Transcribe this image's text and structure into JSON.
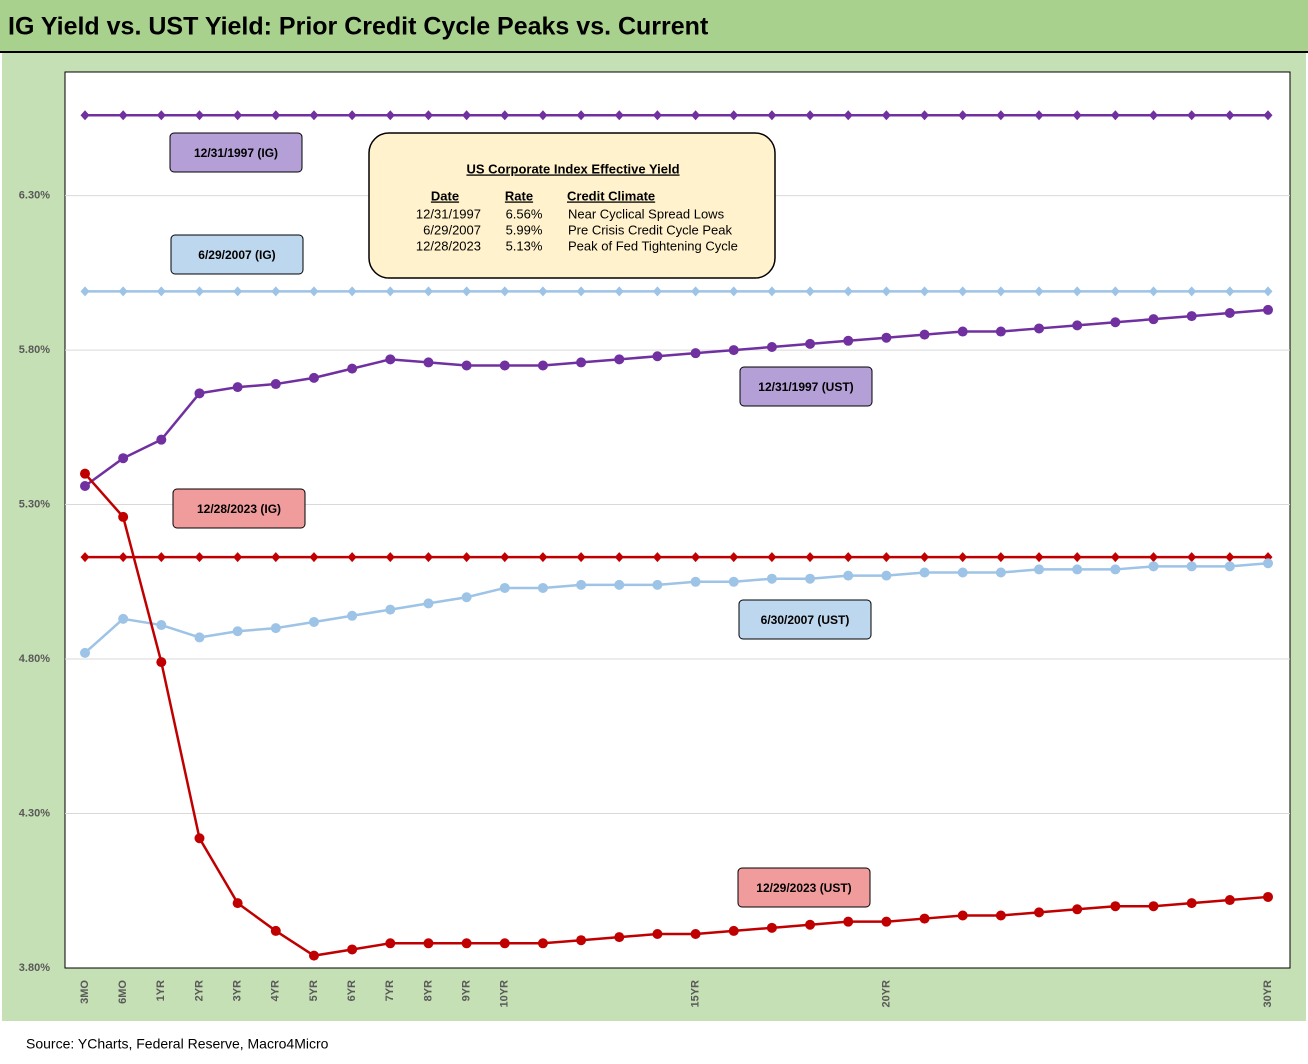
{
  "chart_data": {
    "type": "line",
    "title": "IG Yield vs. UST Yield: Prior Credit Cycle Peaks vs. Current",
    "source": "Source: YCharts, Federal Reserve, Macro4Micro",
    "categories": [
      "3MO",
      "6MO",
      "1YR",
      "2YR",
      "3YR",
      "4YR",
      "5YR",
      "6YR",
      "7YR",
      "8YR",
      "9YR",
      "10YR",
      null,
      null,
      null,
      null,
      "15YR",
      null,
      null,
      null,
      null,
      "20YR",
      null,
      null,
      null,
      null,
      null,
      null,
      null,
      null,
      null,
      "30YR"
    ],
    "ylim": [
      3.8,
      6.7
    ],
    "yticks": [
      {
        "value": 3.8,
        "label": "3.80%"
      },
      {
        "value": 4.3,
        "label": "4.30%"
      },
      {
        "value": 4.8,
        "label": "4.80%"
      },
      {
        "value": 5.3,
        "label": "5.30%"
      },
      {
        "value": 5.8,
        "label": "5.80%"
      },
      {
        "value": 6.3,
        "label": "6.30%"
      }
    ],
    "grid": true,
    "series": [
      {
        "name": "12/31/1997 (IG)",
        "color": "#7030a0",
        "label_color": "#b4a0d6",
        "marker": "diamond",
        "values": [
          6.56,
          6.56,
          6.56,
          6.56,
          6.56,
          6.56,
          6.56,
          6.56,
          6.56,
          6.56,
          6.56,
          6.56,
          6.56,
          6.56,
          6.56,
          6.56,
          6.56,
          6.56,
          6.56,
          6.56,
          6.56,
          6.56,
          6.56,
          6.56,
          6.56,
          6.56,
          6.56,
          6.56,
          6.56,
          6.56,
          6.56,
          6.56
        ]
      },
      {
        "name": "6/29/2007 (IG)",
        "color": "#9dc3e6",
        "label_color": "#bdd7ee",
        "marker": "diamond",
        "values": [
          5.99,
          5.99,
          5.99,
          5.99,
          5.99,
          5.99,
          5.99,
          5.99,
          5.99,
          5.99,
          5.99,
          5.99,
          5.99,
          5.99,
          5.99,
          5.99,
          5.99,
          5.99,
          5.99,
          5.99,
          5.99,
          5.99,
          5.99,
          5.99,
          5.99,
          5.99,
          5.99,
          5.99,
          5.99,
          5.99,
          5.99,
          5.99
        ]
      },
      {
        "name": "12/28/2023 (IG)",
        "color": "#c00000",
        "label_color": "#f19c9c",
        "marker": "diamond",
        "values": [
          5.13,
          5.13,
          5.13,
          5.13,
          5.13,
          5.13,
          5.13,
          5.13,
          5.13,
          5.13,
          5.13,
          5.13,
          5.13,
          5.13,
          5.13,
          5.13,
          5.13,
          5.13,
          5.13,
          5.13,
          5.13,
          5.13,
          5.13,
          5.13,
          5.13,
          5.13,
          5.13,
          5.13,
          5.13,
          5.13,
          5.13,
          5.13
        ]
      },
      {
        "name": "12/31/1997 (UST)",
        "color": "#7030a0",
        "label_color": "#b4a0d6",
        "marker": "circle",
        "values": [
          5.36,
          5.45,
          5.51,
          5.66,
          5.68,
          5.69,
          5.71,
          5.74,
          5.77,
          5.76,
          5.75,
          5.75,
          5.75,
          5.76,
          5.77,
          5.78,
          5.79,
          5.8,
          5.81,
          5.82,
          5.83,
          5.84,
          5.85,
          5.86,
          5.86,
          5.87,
          5.88,
          5.89,
          5.9,
          5.91,
          5.92,
          5.93
        ]
      },
      {
        "name": "6/30/2007 (UST)",
        "color": "#9dc3e6",
        "label_color": "#bdd7ee",
        "marker": "circle",
        "values": [
          4.82,
          4.93,
          4.91,
          4.87,
          4.89,
          4.9,
          4.92,
          4.94,
          4.96,
          4.98,
          5.0,
          5.03,
          5.03,
          5.04,
          5.04,
          5.04,
          5.05,
          5.05,
          5.06,
          5.06,
          5.07,
          5.07,
          5.08,
          5.08,
          5.08,
          5.09,
          5.09,
          5.09,
          5.1,
          5.1,
          5.1,
          5.11
        ]
      },
      {
        "name": "12/29/2023 (UST)",
        "color": "#c00000",
        "label_color": "#f19c9c",
        "marker": "circle",
        "values": [
          5.4,
          5.26,
          4.79,
          4.22,
          4.01,
          3.92,
          3.84,
          3.86,
          3.88,
          3.88,
          3.88,
          3.88,
          3.88,
          3.89,
          3.9,
          3.91,
          3.91,
          3.92,
          3.93,
          3.94,
          3.95,
          3.95,
          3.96,
          3.97,
          3.97,
          3.98,
          3.99,
          4.0,
          4.0,
          4.01,
          4.02,
          4.03
        ]
      }
    ],
    "info_box": {
      "title": "US Corporate Index Effective Yield",
      "columns": [
        "Date",
        "Rate",
        "Credit Climate"
      ],
      "rows": [
        [
          "12/31/1997",
          "6.56%",
          "Near Cyclical Spread Lows"
        ],
        [
          "6/29/2007",
          "5.99%",
          "Pre Crisis Credit Cycle Peak"
        ],
        [
          "12/28/2023",
          "5.13%",
          "Peak of Fed Tightening Cycle"
        ]
      ]
    }
  }
}
